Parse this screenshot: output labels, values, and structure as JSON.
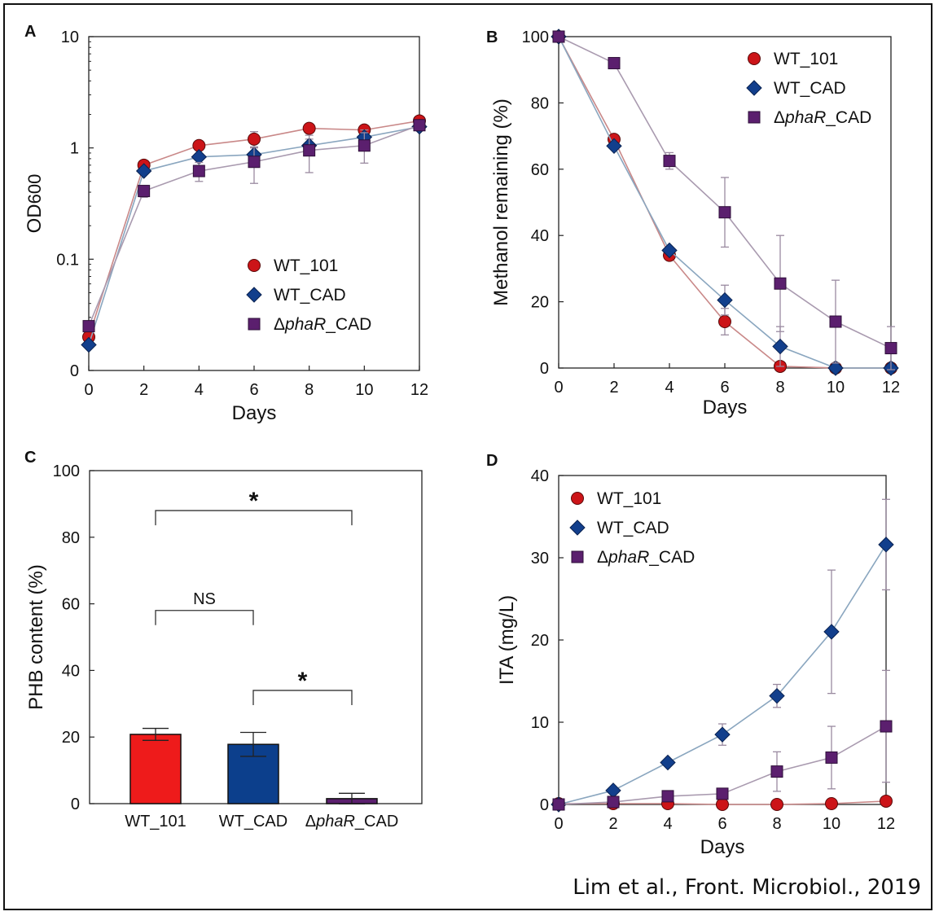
{
  "citation": "Lim et al., Front. Microbiol., 2019",
  "colors": {
    "wt101": "#cc1418",
    "wtcad": "#123f8c",
    "phar": "#5b1f6e",
    "wt101_line": "#c98888",
    "wtcad_line": "#8aa6bf",
    "phar_line": "#a99aaf",
    "err": "#9a8aa0"
  },
  "legend": {
    "wt101": "WT_101",
    "wtcad": "WT_CAD",
    "phar_prefix": "Δ",
    "phar_gene": "phaR",
    "phar_suffix": "_CAD"
  },
  "chart_data": [
    {
      "panel": "A",
      "type": "line",
      "xlabel": "Days",
      "ylabel": "OD600",
      "yscale": "log",
      "xlim": [
        0,
        12
      ],
      "ylim": [
        0.01,
        10
      ],
      "xticks": [
        "0",
        "2",
        "4",
        "6",
        "8",
        "10",
        "12"
      ],
      "yticks": [
        {
          "v": 10,
          "label": "10"
        },
        {
          "v": 1,
          "label": "1"
        },
        {
          "v": 0.1,
          "label": "0.1"
        },
        {
          "v": 0.01,
          "label": "0"
        }
      ],
      "x": [
        0,
        2,
        4,
        6,
        8,
        10,
        12
      ],
      "series": [
        {
          "key": "wt101",
          "name": "WT_101",
          "values": [
            0.02,
            0.7,
            1.05,
            1.2,
            1.5,
            1.45,
            1.75
          ],
          "err": [
            0,
            0,
            0.05,
            0.2,
            0,
            0,
            0
          ]
        },
        {
          "key": "wtcad",
          "name": "WT_CAD",
          "values": [
            0.017,
            0.62,
            0.83,
            0.87,
            1.05,
            1.25,
            1.55
          ],
          "err": [
            0,
            0,
            0,
            0.15,
            0.15,
            0.2,
            0
          ]
        },
        {
          "key": "phar",
          "name": "ΔphaR_CAD",
          "values": [
            0.025,
            0.41,
            0.62,
            0.75,
            0.95,
            1.05,
            1.6
          ],
          "err": [
            0,
            0.05,
            0.12,
            0.27,
            0.35,
            0.32,
            0
          ]
        }
      ]
    },
    {
      "panel": "B",
      "type": "line",
      "xlabel": "Days",
      "ylabel": "Methanol remaining (%)",
      "xlim": [
        0,
        12
      ],
      "ylim": [
        0,
        100
      ],
      "xticks": [
        "0",
        "2",
        "4",
        "6",
        "8",
        "10",
        "12"
      ],
      "yticks": [
        {
          "v": 0,
          "label": "0"
        },
        {
          "v": 20,
          "label": "20"
        },
        {
          "v": 40,
          "label": "40"
        },
        {
          "v": 60,
          "label": "60"
        },
        {
          "v": 80,
          "label": "80"
        },
        {
          "v": 100,
          "label": "100"
        }
      ],
      "x": [
        0,
        2,
        4,
        6,
        8,
        10,
        12
      ],
      "series": [
        {
          "key": "wt101",
          "name": "WT_101",
          "values": [
            100,
            69,
            34,
            14,
            0.5,
            0,
            0
          ],
          "err": [
            0,
            0,
            0,
            4,
            0,
            0,
            0
          ]
        },
        {
          "key": "wtcad",
          "name": "WT_CAD",
          "values": [
            100,
            67,
            35.5,
            20.5,
            6.5,
            0,
            0
          ],
          "err": [
            0,
            0,
            0,
            4.5,
            6,
            0,
            0
          ]
        },
        {
          "key": "phar",
          "name": "ΔphaR_CAD",
          "values": [
            100,
            92,
            62.5,
            47,
            25.5,
            14,
            6
          ],
          "err": [
            0,
            0,
            2.5,
            10.5,
            14.5,
            12.5,
            6.5
          ]
        }
      ]
    },
    {
      "panel": "C",
      "type": "bar",
      "ylabel": "PHB content (%)",
      "ylim": [
        0,
        100
      ],
      "yticks": [
        {
          "v": 0,
          "label": "0"
        },
        {
          "v": 20,
          "label": "20"
        },
        {
          "v": 40,
          "label": "40"
        },
        {
          "v": 60,
          "label": "60"
        },
        {
          "v": 80,
          "label": "80"
        },
        {
          "v": 100,
          "label": "100"
        }
      ],
      "categories": [
        "WT_101",
        "WT_CAD",
        "ΔphaR_CAD"
      ],
      "values": [
        20.8,
        17.8,
        1.5
      ],
      "err": [
        1.8,
        3.6,
        1.6
      ],
      "bar_colors": [
        "#ee1b1b",
        "#0c3f8c",
        "#5b1f6e"
      ],
      "annotations": [
        {
          "label": "*",
          "from": 0,
          "to": 2,
          "y": 88
        },
        {
          "label": "NS",
          "from": 0,
          "to": 1,
          "y": 58
        },
        {
          "label": "*",
          "from": 1,
          "to": 2,
          "y": 34
        }
      ]
    },
    {
      "panel": "D",
      "type": "line",
      "xlabel": "Days",
      "ylabel": "ITA (mg/L)",
      "xlim": [
        0,
        12
      ],
      "ylim": [
        0,
        40
      ],
      "xticks": [
        "0",
        "2",
        "4",
        "6",
        "8",
        "10",
        "12"
      ],
      "yticks": [
        {
          "v": 0,
          "label": "0"
        },
        {
          "v": 10,
          "label": "10"
        },
        {
          "v": 20,
          "label": "20"
        },
        {
          "v": 30,
          "label": "30"
        },
        {
          "v": 40,
          "label": "40"
        }
      ],
      "x": [
        0,
        2,
        4,
        6,
        8,
        10,
        12
      ],
      "series": [
        {
          "key": "wt101",
          "name": "WT_101",
          "values": [
            0.1,
            0.1,
            0.1,
            0,
            0,
            0.1,
            0.4
          ],
          "err": [
            0,
            0,
            0,
            0,
            0,
            0,
            0
          ]
        },
        {
          "key": "wtcad",
          "name": "WT_CAD",
          "values": [
            0,
            1.7,
            5.1,
            8.5,
            13.2,
            21,
            31.6
          ],
          "err": [
            0,
            0,
            0,
            1.3,
            1.4,
            7.5,
            5.5
          ]
        },
        {
          "key": "phar",
          "name": "ΔphaR_CAD",
          "values": [
            0,
            0.3,
            1,
            1.3,
            4,
            5.7,
            9.5
          ],
          "err": [
            0,
            0,
            0,
            0,
            2.4,
            3.8,
            6.8
          ]
        }
      ]
    }
  ]
}
